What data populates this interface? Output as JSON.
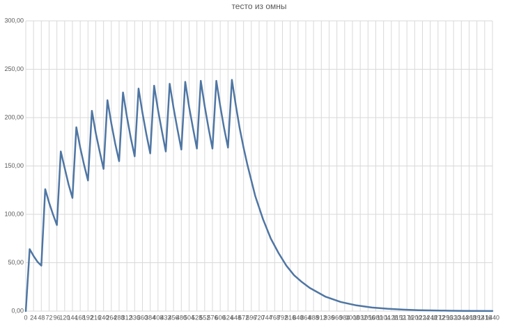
{
  "chart_data": {
    "type": "line",
    "title": "тесто из омны",
    "x": [
      0,
      12,
      24,
      36,
      48,
      60,
      72,
      84,
      96,
      108,
      120,
      132,
      144,
      156,
      168,
      180,
      192,
      204,
      216,
      228,
      240,
      252,
      264,
      276,
      288,
      300,
      312,
      324,
      336,
      348,
      360,
      372,
      384,
      396,
      408,
      420,
      432,
      444,
      456,
      468,
      480,
      492,
      504,
      516,
      528,
      540,
      552,
      564,
      576,
      588,
      600,
      612,
      624,
      636,
      648,
      660,
      672,
      684,
      708,
      732,
      756,
      780,
      804,
      828,
      852,
      876,
      924,
      972,
      1020,
      1068,
      1116,
      1164,
      1212,
      1260,
      1308,
      1356,
      1440
    ],
    "values": [
      0,
      64,
      57,
      51,
      47,
      126,
      112,
      100,
      89,
      165,
      148,
      131,
      117,
      190,
      169,
      151,
      135,
      207,
      184,
      165,
      147,
      218,
      194,
      173,
      155,
      226,
      201,
      179,
      160,
      230,
      205,
      183,
      163,
      233,
      208,
      186,
      165,
      235,
      210,
      188,
      167,
      237,
      211,
      189,
      168,
      238,
      212,
      189,
      168,
      238,
      212,
      189,
      169,
      239,
      213,
      189,
      169,
      151,
      119,
      95,
      75,
      60,
      47,
      37,
      30,
      24,
      15,
      9.4,
      5.9,
      3.7,
      2.4,
      1.5,
      0.9,
      0.6,
      0.4,
      0.2,
      0.1
    ],
    "color": "#4f76a3",
    "xlim": [
      0,
      1440
    ],
    "xticks": [
      0,
      24,
      48,
      72,
      96,
      120,
      144,
      168,
      192,
      216,
      240,
      264,
      288,
      312,
      336,
      360,
      384,
      408,
      432,
      456,
      480,
      504,
      528,
      552,
      576,
      600,
      624,
      648,
      672,
      696,
      720,
      744,
      768,
      792,
      816,
      840,
      864,
      888,
      912,
      936,
      960,
      984,
      1008,
      1032,
      1056,
      1080,
      1104,
      1128,
      1152,
      1176,
      1200,
      1224,
      1248,
      1272,
      1296,
      1320,
      1344,
      1368,
      1392,
      1416,
      1440
    ],
    "ylim": [
      0,
      300
    ],
    "yticks": [
      {
        "value": 0,
        "label": "0,00"
      },
      {
        "value": 50,
        "label": "50,00"
      },
      {
        "value": 100,
        "label": "100,00"
      },
      {
        "value": 150,
        "label": "150,00"
      },
      {
        "value": 200,
        "label": "200,00"
      },
      {
        "value": 250,
        "label": "250,00"
      },
      {
        "value": 300,
        "label": "300,00"
      }
    ],
    "grid": true
  }
}
